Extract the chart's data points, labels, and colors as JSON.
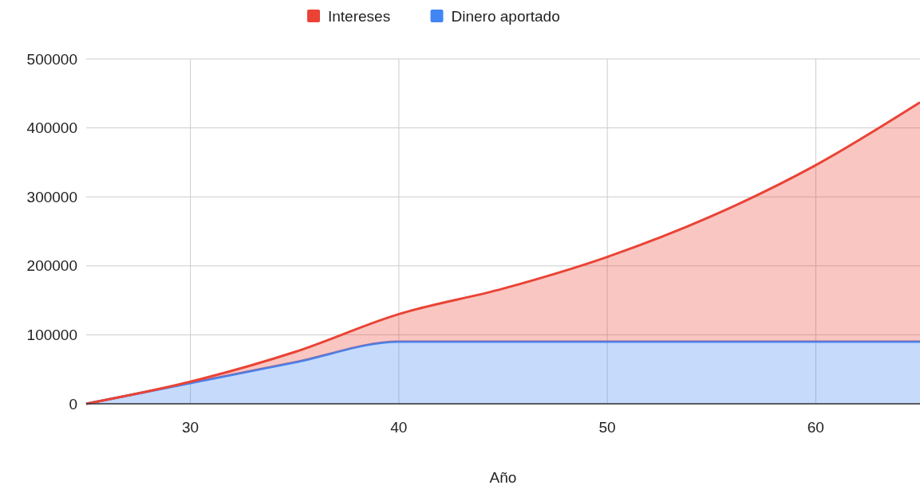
{
  "chart_data": {
    "type": "area",
    "stacked": true,
    "xlabel": "Año",
    "x": [
      25,
      30,
      35,
      40,
      45,
      50,
      55,
      60,
      65
    ],
    "series": [
      {
        "name": "Dinero aportado",
        "color": "#4285f4",
        "values": [
          0,
          30000,
          60000,
          90000,
          90000,
          90000,
          90000,
          90000,
          90000
        ]
      },
      {
        "name": "Intereses",
        "color": "#ea4335",
        "values": [
          0,
          2000,
          15000,
          40000,
          77000,
          123000,
          182000,
          256000,
          347000
        ]
      }
    ],
    "xlim": [
      25,
      65
    ],
    "xticks": [
      30,
      40,
      50,
      60
    ],
    "ylim": [
      0,
      500000
    ],
    "yticks": [
      0,
      100000,
      200000,
      300000,
      400000,
      500000
    ],
    "grid": true,
    "legend": "top"
  }
}
